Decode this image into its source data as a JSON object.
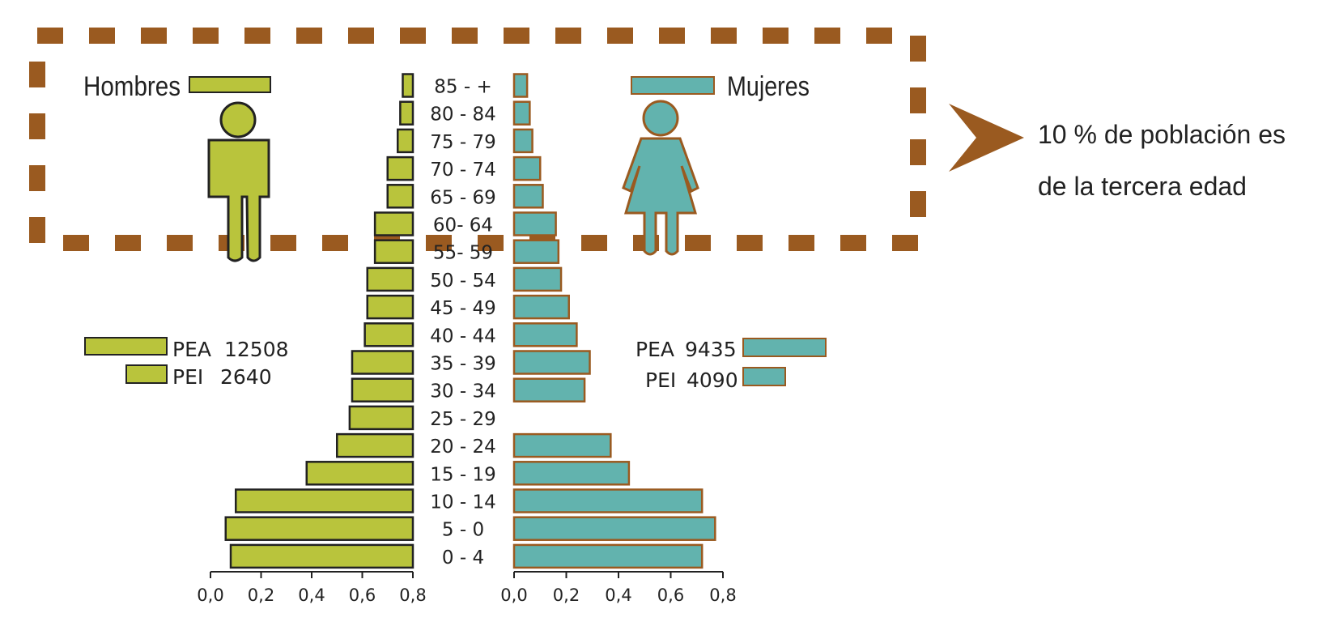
{
  "colors": {
    "male": "#b9c43c",
    "female": "#62b3ae",
    "female_outline": "#9a5a20",
    "frame": "#9a5a20",
    "text": "#222222"
  },
  "legend": {
    "male_title": "Hombres",
    "female_title": "Mujeres",
    "male_pea_label": "PEA",
    "male_pea_value": "12508",
    "male_pei_label": "PEI",
    "male_pei_value": "2640",
    "female_pea_label": "PEA",
    "female_pea_value": "9435",
    "female_pei_label": "PEI",
    "female_pei_value": "4090"
  },
  "note": {
    "line1": "10 % de población es",
    "line2": "de la tercera edad"
  },
  "chart_data": {
    "type": "bar",
    "subtype": "population-pyramid",
    "categories": [
      "0 - 4",
      "5 - 0",
      "10 - 14",
      "15 - 19",
      "20 - 24",
      "25 - 29",
      "30 - 34",
      "35 - 39",
      "40 - 44",
      "45 - 49",
      "50 - 54",
      "55- 59",
      "60- 64",
      "65 - 69",
      "70 - 74",
      "75 - 79",
      "80 - 84",
      "85 - +"
    ],
    "series": [
      {
        "name": "Hombres",
        "values": [
          0.72,
          0.74,
          0.7,
          0.42,
          0.3,
          0.25,
          0.24,
          0.24,
          0.19,
          0.18,
          0.18,
          0.15,
          0.15,
          0.1,
          0.1,
          0.06,
          0.05,
          0.04
        ]
      },
      {
        "name": "Mujeres",
        "values": [
          0.72,
          0.77,
          0.72,
          0.44,
          0.37,
          0.0,
          0.27,
          0.29,
          0.24,
          0.21,
          0.18,
          0.17,
          0.16,
          0.11,
          0.1,
          0.07,
          0.06,
          0.05
        ]
      }
    ],
    "xlim": [
      0,
      0.8
    ],
    "xticks": [
      "0,0",
      "0,2",
      "0,4",
      "0,6",
      "0,8"
    ],
    "grid": false
  }
}
